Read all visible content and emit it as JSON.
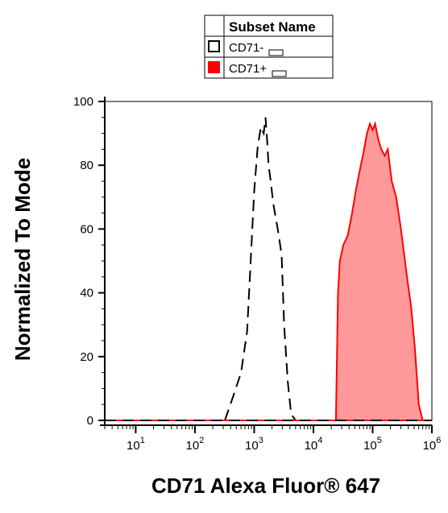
{
  "chart_data": {
    "type": "area",
    "xlabel": "CD71 Alexa Fluor® 647",
    "ylabel": "Normalized To Mode",
    "xscale": "log",
    "xlim": [
      3,
      1000000
    ],
    "ylim": [
      0,
      100
    ],
    "x_ticks": [
      {
        "base": "10",
        "exp": "1",
        "value": 10
      },
      {
        "base": "10",
        "exp": "2",
        "value": 100
      },
      {
        "base": "10",
        "exp": "3",
        "value": 1000
      },
      {
        "base": "10",
        "exp": "4",
        "value": 10000
      },
      {
        "base": "10",
        "exp": "5",
        "value": 100000
      },
      {
        "base": "10",
        "exp": "6",
        "value": 1000000
      }
    ],
    "y_ticks": [
      "0",
      "20",
      "40",
      "60",
      "80",
      "100"
    ],
    "grid": false,
    "legend": {
      "position": "top-center",
      "header": "Subset Name",
      "entries": [
        {
          "label": "CD71-",
          "swatch": "outline"
        },
        {
          "label": "CD71+",
          "swatch": "filled"
        }
      ]
    },
    "series": [
      {
        "name": "CD71-",
        "style": "dashed-outline",
        "color": "#000000",
        "x": [
          320,
          450,
          600,
          760,
          900,
          1000,
          1150,
          1300,
          1450,
          1550,
          1650,
          1750,
          1900,
          2100,
          2500,
          2900,
          3200,
          3700,
          4200,
          5000
        ],
        "y": [
          0,
          8,
          15,
          28,
          55,
          72,
          86,
          92,
          90,
          95,
          88,
          80,
          75,
          68,
          60,
          52,
          30,
          12,
          2,
          0
        ]
      },
      {
        "name": "CD71+",
        "style": "filled",
        "color": "#ff0000",
        "fill": "#ff9999",
        "x": [
          24000,
          26000,
          28000,
          32000,
          38000,
          45000,
          52000,
          60000,
          70000,
          80000,
          90000,
          100000,
          110000,
          125000,
          140000,
          160000,
          180000,
          210000,
          250000,
          300000,
          380000,
          450000,
          520000,
          600000,
          700000
        ],
        "y": [
          0,
          40,
          50,
          55,
          58,
          65,
          72,
          78,
          84,
          90,
          93,
          91,
          93,
          88,
          85,
          83,
          85,
          75,
          70,
          60,
          45,
          35,
          22,
          5,
          0
        ]
      }
    ]
  }
}
